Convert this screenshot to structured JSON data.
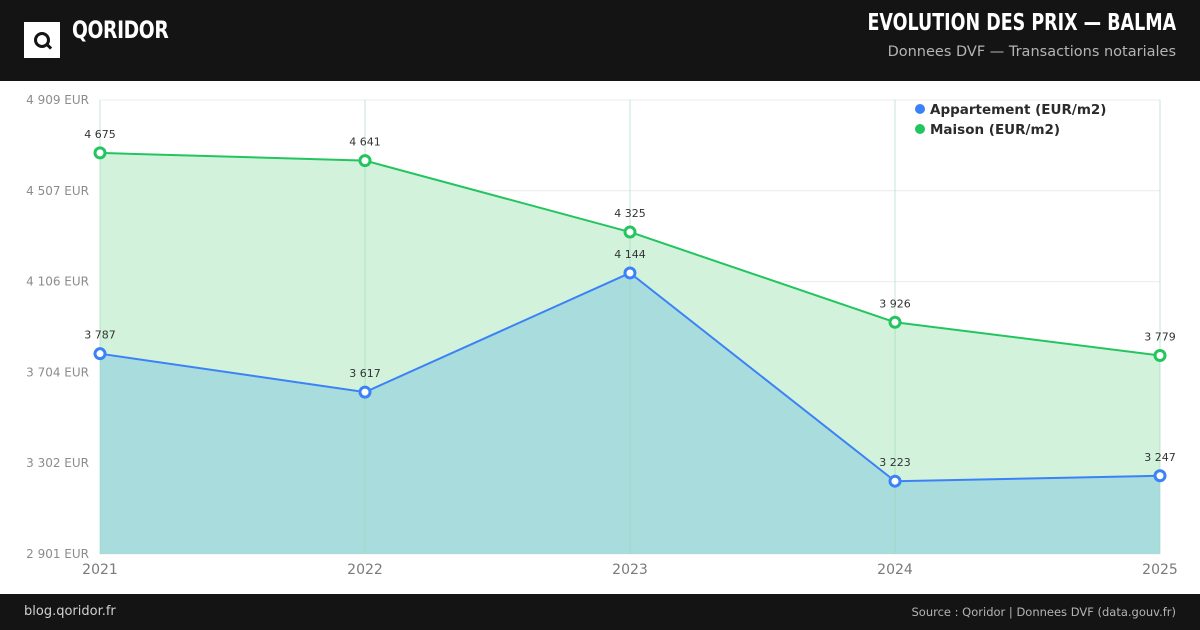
{
  "header": {
    "brand": "QORIDOR",
    "title": "EVOLUTION DES PRIX — BALMA",
    "subtitle": "Donnees DVF — Transactions notariales"
  },
  "footer": {
    "site": "blog.qoridor.fr",
    "source": "Source : Qoridor | Donnees DVF (data.gouv.fr)"
  },
  "colors": {
    "appartement": "#3b82f6",
    "maison": "#22c55e",
    "appartement_fill": "#a9dcdc",
    "maison_fill": "#d2f2dc"
  },
  "chart_data": {
    "type": "area",
    "x": [
      "2021",
      "2022",
      "2023",
      "2024",
      "2025"
    ],
    "y_ticks": [
      "2 901 EUR",
      "3 302 EUR",
      "3 704 EUR",
      "4 106 EUR",
      "4 507 EUR",
      "4 909 EUR"
    ],
    "ylim": [
      2901,
      4909
    ],
    "grid": true,
    "legend_position": "top-right",
    "series": [
      {
        "name": "Appartement (EUR/m2)",
        "values": [
          3787,
          3617,
          4144,
          3223,
          3247
        ],
        "labels": [
          "3 787",
          "3 617",
          "4 144",
          "3 223",
          "3 247"
        ]
      },
      {
        "name": "Maison (EUR/m2)",
        "values": [
          4675,
          4641,
          4325,
          3926,
          3779
        ],
        "labels": [
          "4 675",
          "4 641",
          "4 325",
          "3 926",
          "3 779"
        ]
      }
    ]
  }
}
